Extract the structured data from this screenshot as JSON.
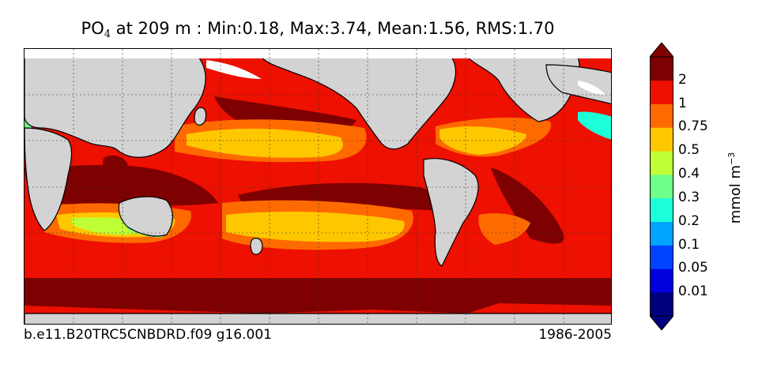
{
  "title": {
    "species": "PO",
    "subscript": "4",
    "depth_text": "at 209 m",
    "stats_text": ": Min:0.18, Max:3.74, Mean:1.56, RMS:1.70"
  },
  "footer": {
    "case_name": "b.e11.B20TRC5CNBDRD.f09 g16.001",
    "years": "1986-2005"
  },
  "colorbar": {
    "unit_text": "mmol m",
    "unit_exponent": "−3",
    "levels": [
      "0.01",
      "0.05",
      "0.1",
      "0.2",
      "0.3",
      "0.4",
      "0.5",
      "0.75",
      "1",
      "2"
    ],
    "colors": [
      "#00007f",
      "#0000dd",
      "#0044ff",
      "#00a4ff",
      "#1cffdb",
      "#6dff8a",
      "#c0ff36",
      "#ffc700",
      "#ff6a00",
      "#ee1000",
      "#7f0000"
    ],
    "extend": "both"
  },
  "map_colors": {
    "land": "#d3d3d3",
    "no_data": "#ffffff",
    "coast": "#000000"
  }
}
